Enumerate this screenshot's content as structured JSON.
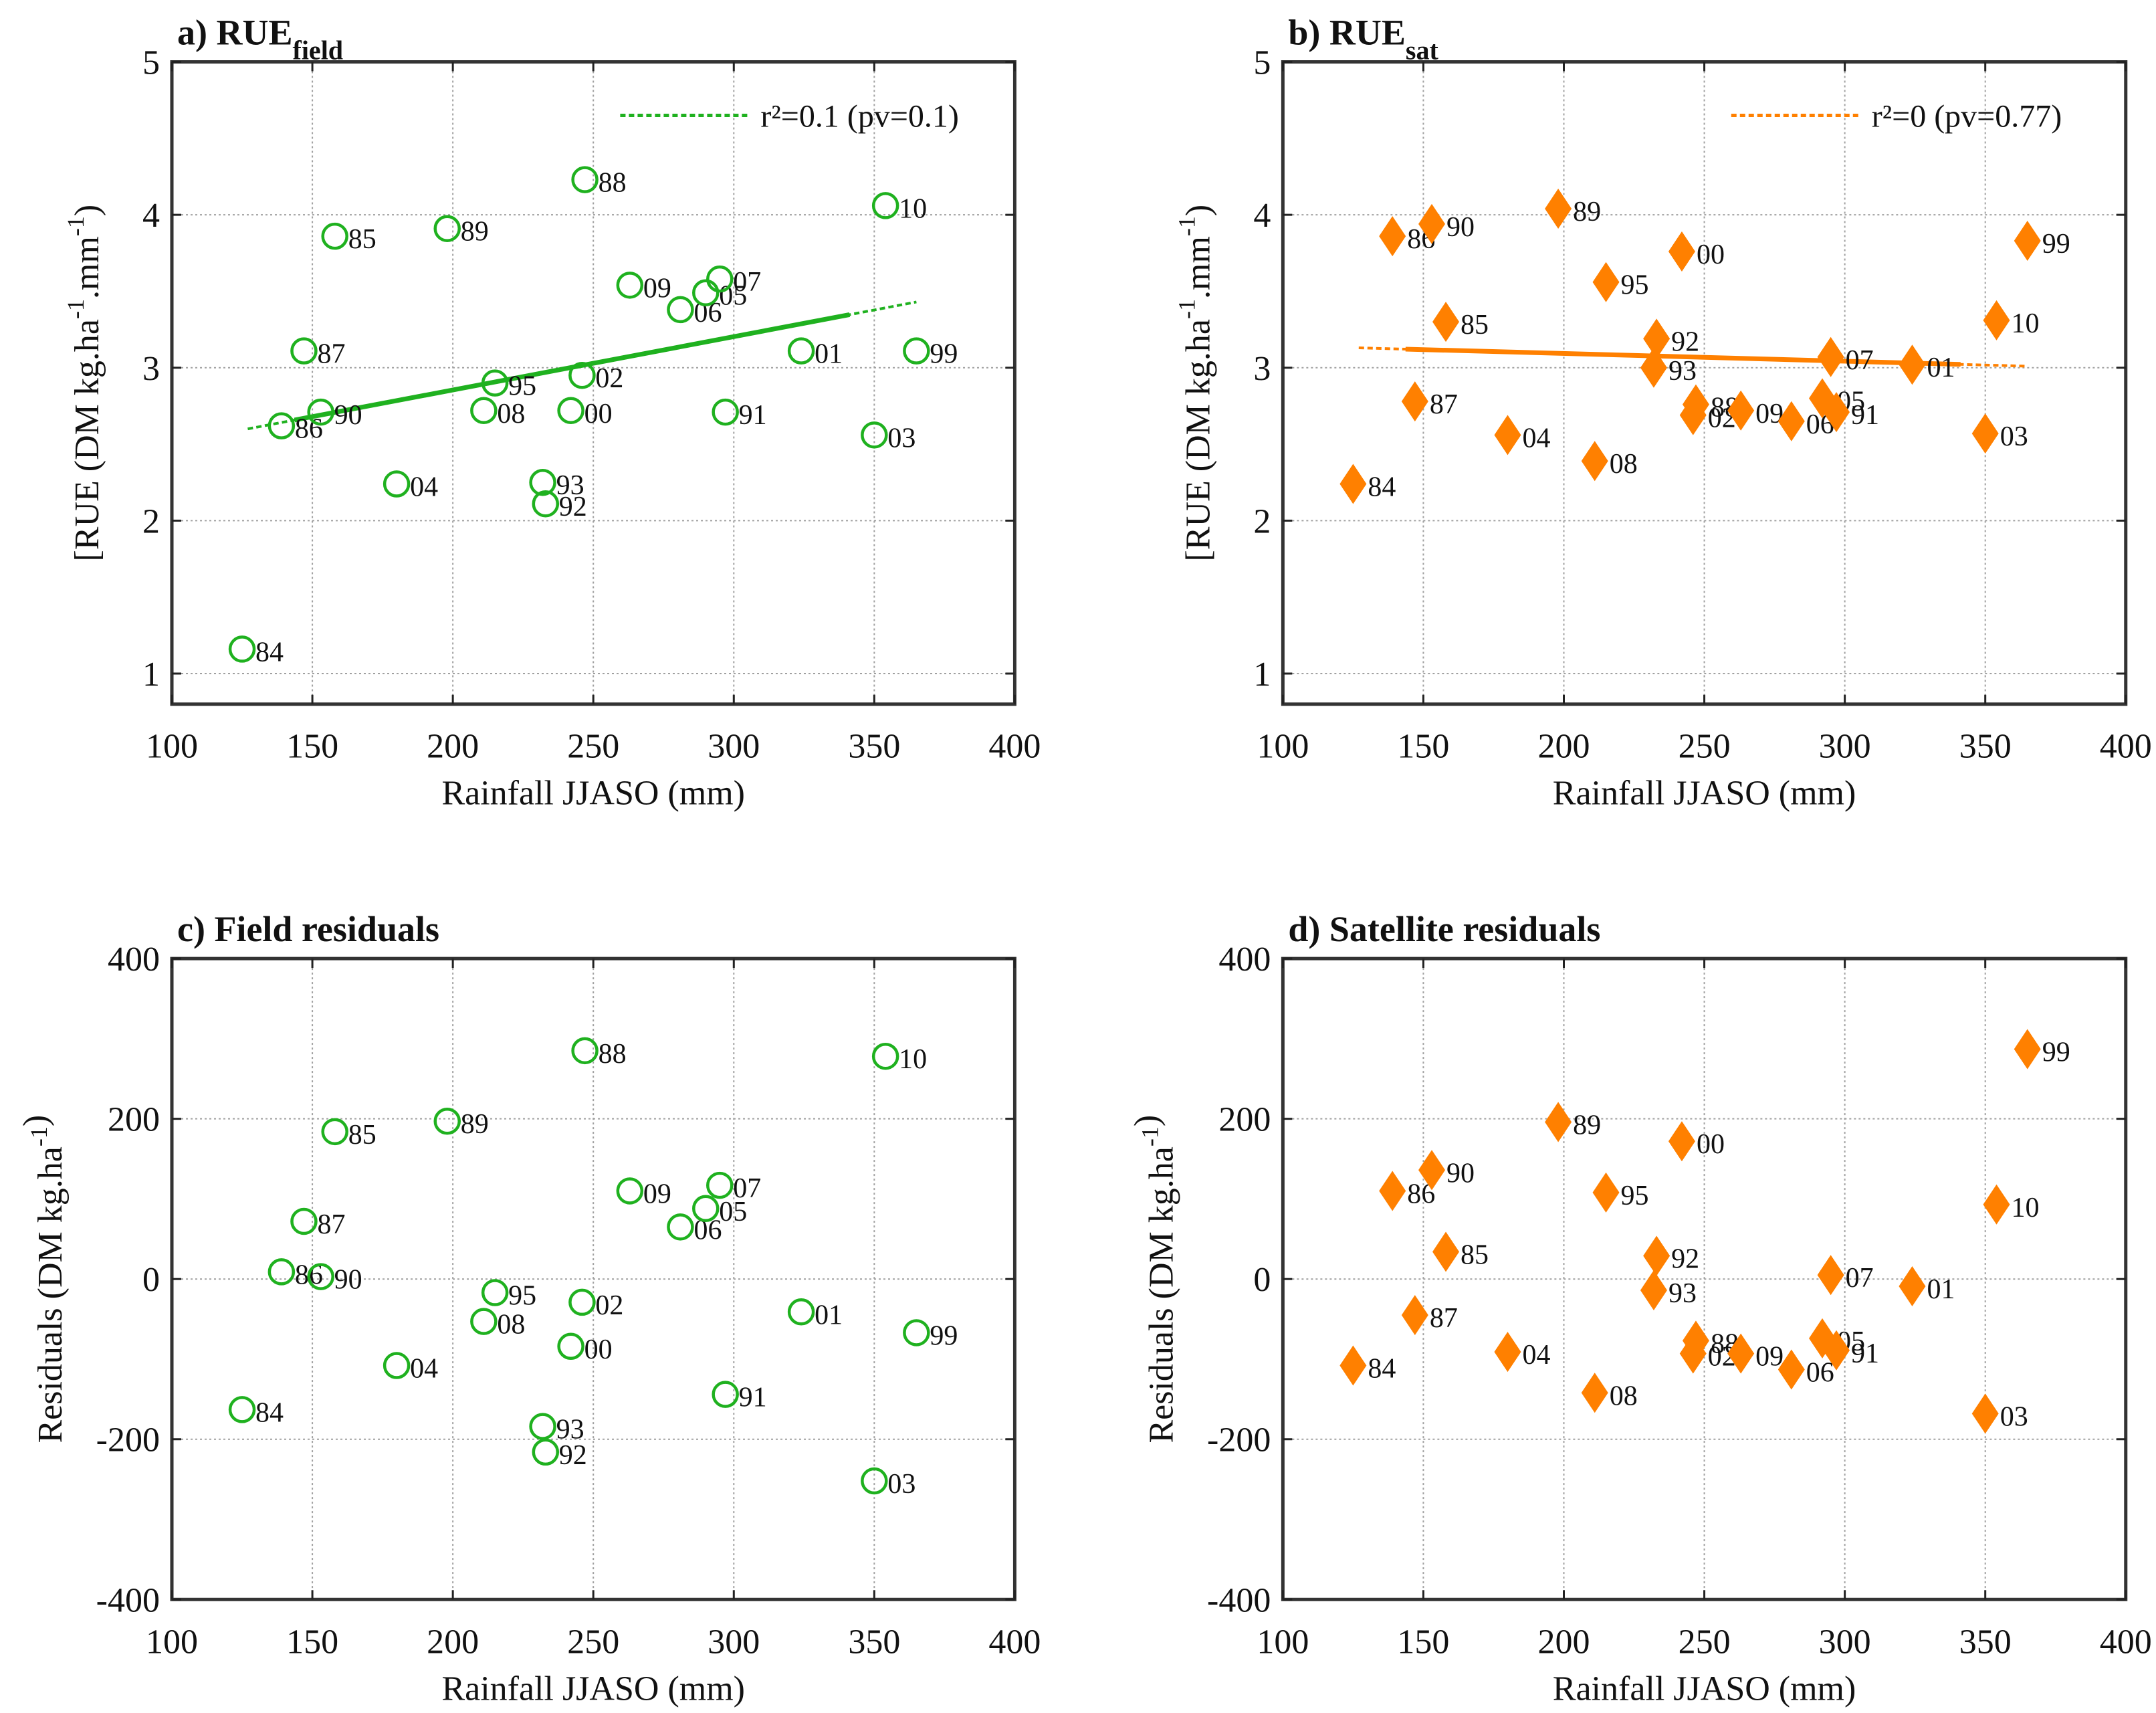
{
  "colors": {
    "field": "#1fb11f",
    "sat": "#ff8000",
    "grid": "#a0a0a0",
    "axis": "#333333"
  },
  "chart_data": [
    {
      "id": "a",
      "type": "scatter",
      "title": "a) RUE",
      "title_sub": "field",
      "xlabel": "Rainfall JJASO (mm)",
      "ylabel": "[RUE (DM kg.ha",
      "ylabel_sup1": "-1",
      "ylabel_mid": ".mm",
      "ylabel_sup2": "-1",
      "ylabel_end": ")",
      "xlim": [
        100,
        400
      ],
      "ylim": [
        0.8,
        5
      ],
      "xticks": [
        100,
        150,
        200,
        250,
        300,
        350,
        400
      ],
      "yticks": [
        1,
        2,
        3,
        4,
        5
      ],
      "grid": true,
      "marker": "circle-open",
      "series_color": "field",
      "legend": {
        "label": "r²=0.1 (pv=0.1)",
        "position": "top-right"
      },
      "fit_line": {
        "x": [
          127,
          365
        ],
        "y": [
          2.6,
          3.43
        ]
      },
      "points": [
        {
          "label": "84",
          "x": 125,
          "y": 1.16
        },
        {
          "label": "86",
          "x": 139,
          "y": 2.62
        },
        {
          "label": "90",
          "x": 153,
          "y": 2.71
        },
        {
          "label": "87",
          "x": 147,
          "y": 3.11
        },
        {
          "label": "85",
          "x": 158,
          "y": 3.86
        },
        {
          "label": "89",
          "x": 198,
          "y": 3.91
        },
        {
          "label": "04",
          "x": 180,
          "y": 2.24
        },
        {
          "label": "08",
          "x": 211,
          "y": 2.72
        },
        {
          "label": "95",
          "x": 215,
          "y": 2.9
        },
        {
          "label": "93",
          "x": 232,
          "y": 2.25
        },
        {
          "label": "92",
          "x": 233,
          "y": 2.11
        },
        {
          "label": "00",
          "x": 242,
          "y": 2.72
        },
        {
          "label": "02",
          "x": 246,
          "y": 2.95
        },
        {
          "label": "88",
          "x": 247,
          "y": 4.23
        },
        {
          "label": "09",
          "x": 263,
          "y": 3.54
        },
        {
          "label": "06",
          "x": 281,
          "y": 3.38
        },
        {
          "label": "05",
          "x": 290,
          "y": 3.49
        },
        {
          "label": "07",
          "x": 295,
          "y": 3.58
        },
        {
          "label": "91",
          "x": 297,
          "y": 2.71
        },
        {
          "label": "01",
          "x": 324,
          "y": 3.11
        },
        {
          "label": "03",
          "x": 350,
          "y": 2.56
        },
        {
          "label": "10",
          "x": 354,
          "y": 4.06
        },
        {
          "label": "99",
          "x": 365,
          "y": 3.11
        }
      ]
    },
    {
      "id": "b",
      "type": "scatter",
      "title": "b) RUE",
      "title_sub": "sat",
      "xlabel": "Rainfall JJASO (mm)",
      "ylabel": "[RUE (DM kg.ha",
      "ylabel_sup1": "-1",
      "ylabel_mid": ".mm",
      "ylabel_sup2": "-1",
      "ylabel_end": ")",
      "xlim": [
        100,
        400
      ],
      "ylim": [
        0.8,
        5
      ],
      "xticks": [
        100,
        150,
        200,
        250,
        300,
        350,
        400
      ],
      "yticks": [
        1,
        2,
        3,
        4,
        5
      ],
      "grid": true,
      "marker": "diamond-filled",
      "series_color": "sat",
      "legend": {
        "label": "r²=0 (pv=0.77)",
        "position": "top-right"
      },
      "fit_line": {
        "x": [
          127,
          365
        ],
        "y": [
          3.13,
          3.01
        ]
      },
      "points": [
        {
          "label": "84",
          "x": 125,
          "y": 2.24
        },
        {
          "label": "86",
          "x": 139,
          "y": 3.86
        },
        {
          "label": "90",
          "x": 153,
          "y": 3.94
        },
        {
          "label": "87",
          "x": 147,
          "y": 2.78
        },
        {
          "label": "85",
          "x": 158,
          "y": 3.3
        },
        {
          "label": "89",
          "x": 198,
          "y": 4.04
        },
        {
          "label": "04",
          "x": 180,
          "y": 2.56
        },
        {
          "label": "08",
          "x": 211,
          "y": 2.39
        },
        {
          "label": "95",
          "x": 215,
          "y": 3.56
        },
        {
          "label": "92",
          "x": 233,
          "y": 3.19
        },
        {
          "label": "93",
          "x": 232,
          "y": 3.0
        },
        {
          "label": "00",
          "x": 242,
          "y": 3.76
        },
        {
          "label": "88",
          "x": 247,
          "y": 2.76
        },
        {
          "label": "02",
          "x": 246,
          "y": 2.69
        },
        {
          "label": "09",
          "x": 263,
          "y": 2.72
        },
        {
          "label": "06",
          "x": 281,
          "y": 2.65
        },
        {
          "label": "05",
          "x": 292,
          "y": 2.8
        },
        {
          "label": "91",
          "x": 297,
          "y": 2.71
        },
        {
          "label": "07",
          "x": 295,
          "y": 3.07
        },
        {
          "label": "01",
          "x": 324,
          "y": 3.02
        },
        {
          "label": "03",
          "x": 350,
          "y": 2.57
        },
        {
          "label": "10",
          "x": 354,
          "y": 3.31
        },
        {
          "label": "99",
          "x": 365,
          "y": 3.83
        }
      ]
    },
    {
      "id": "c",
      "type": "scatter",
      "title": "c) Field residuals",
      "title_sub": "",
      "xlabel": "Rainfall JJASO (mm)",
      "ylabel": "Residuals (DM kg.ha",
      "ylabel_sup1": "-1",
      "ylabel_mid": "",
      "ylabel_sup2": "",
      "ylabel_end": ")",
      "xlim": [
        100,
        400
      ],
      "ylim": [
        -400,
        400
      ],
      "xticks": [
        100,
        150,
        200,
        250,
        300,
        350,
        400
      ],
      "yticks": [
        -400,
        -200,
        0,
        200,
        400
      ],
      "grid": true,
      "marker": "circle-open",
      "series_color": "field",
      "points": [
        {
          "label": "84",
          "x": 125,
          "y": -163
        },
        {
          "label": "86",
          "x": 139,
          "y": 9
        },
        {
          "label": "90",
          "x": 153,
          "y": 3
        },
        {
          "label": "87",
          "x": 147,
          "y": 72
        },
        {
          "label": "85",
          "x": 158,
          "y": 184
        },
        {
          "label": "89",
          "x": 198,
          "y": 197
        },
        {
          "label": "04",
          "x": 180,
          "y": -108
        },
        {
          "label": "08",
          "x": 211,
          "y": -53
        },
        {
          "label": "95",
          "x": 215,
          "y": -17
        },
        {
          "label": "93",
          "x": 232,
          "y": -184
        },
        {
          "label": "92",
          "x": 233,
          "y": -216
        },
        {
          "label": "00",
          "x": 242,
          "y": -84
        },
        {
          "label": "02",
          "x": 246,
          "y": -29
        },
        {
          "label": "88",
          "x": 247,
          "y": 285
        },
        {
          "label": "09",
          "x": 263,
          "y": 110
        },
        {
          "label": "06",
          "x": 281,
          "y": 65
        },
        {
          "label": "05",
          "x": 290,
          "y": 88
        },
        {
          "label": "07",
          "x": 295,
          "y": 117
        },
        {
          "label": "91",
          "x": 297,
          "y": -144
        },
        {
          "label": "01",
          "x": 324,
          "y": -41
        },
        {
          "label": "03",
          "x": 350,
          "y": -252
        },
        {
          "label": "10",
          "x": 354,
          "y": 278
        },
        {
          "label": "99",
          "x": 365,
          "y": -67
        }
      ]
    },
    {
      "id": "d",
      "type": "scatter",
      "title": "d) Satellite residuals",
      "title_sub": "",
      "xlabel": "Rainfall JJASO (mm)",
      "ylabel": "Residuals (DM kg.ha",
      "ylabel_sup1": "-1",
      "ylabel_mid": "",
      "ylabel_sup2": "",
      "ylabel_end": ")",
      "xlim": [
        100,
        400
      ],
      "ylim": [
        -400,
        400
      ],
      "xticks": [
        100,
        150,
        200,
        250,
        300,
        350,
        400
      ],
      "yticks": [
        -400,
        -200,
        0,
        200,
        400
      ],
      "grid": true,
      "marker": "diamond-filled",
      "series_color": "sat",
      "points": [
        {
          "label": "84",
          "x": 125,
          "y": -108
        },
        {
          "label": "86",
          "x": 139,
          "y": 110
        },
        {
          "label": "90",
          "x": 153,
          "y": 136
        },
        {
          "label": "87",
          "x": 147,
          "y": -45
        },
        {
          "label": "85",
          "x": 158,
          "y": 34
        },
        {
          "label": "89",
          "x": 198,
          "y": 196
        },
        {
          "label": "04",
          "x": 180,
          "y": -91
        },
        {
          "label": "08",
          "x": 211,
          "y": -142
        },
        {
          "label": "95",
          "x": 215,
          "y": 108
        },
        {
          "label": "92",
          "x": 233,
          "y": 29
        },
        {
          "label": "93",
          "x": 232,
          "y": -14
        },
        {
          "label": "00",
          "x": 242,
          "y": 172
        },
        {
          "label": "88",
          "x": 247,
          "y": -77
        },
        {
          "label": "02",
          "x": 246,
          "y": -93
        },
        {
          "label": "09",
          "x": 263,
          "y": -93
        },
        {
          "label": "06",
          "x": 281,
          "y": -113
        },
        {
          "label": "05",
          "x": 292,
          "y": -74
        },
        {
          "label": "91",
          "x": 297,
          "y": -89
        },
        {
          "label": "07",
          "x": 295,
          "y": 5
        },
        {
          "label": "01",
          "x": 324,
          "y": -9
        },
        {
          "label": "03",
          "x": 350,
          "y": -168
        },
        {
          "label": "10",
          "x": 354,
          "y": 93
        },
        {
          "label": "99",
          "x": 365,
          "y": 287
        }
      ]
    }
  ]
}
